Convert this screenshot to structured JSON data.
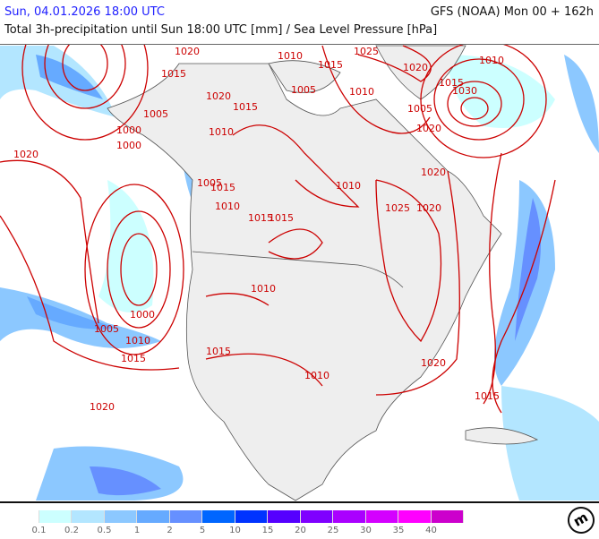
{
  "header": {
    "date": "Sun, 04.01.2026 18:00 UTC",
    "model": "GFS (NOAA) Mon 00 + 162h",
    "title": "Total 3h-precipitation until Sun 18:00 UTC [mm] / Sea Level Pressure [hPa]"
  },
  "colors": {
    "isobar": "#cc0000",
    "land": "#eeeeee",
    "border": "#555555",
    "date_text": "#2020ff"
  },
  "isobar_labels": [
    "1020",
    "1015",
    "1020",
    "1010",
    "1015",
    "1025",
    "1020",
    "1010",
    "1005",
    "1010",
    "1015",
    "1030",
    "1005",
    "1000",
    "1015",
    "1020",
    "1005",
    "1020",
    "1000",
    "1010",
    "1015",
    "1010",
    "1015",
    "1020",
    "1010",
    "1005",
    "1015",
    "1020",
    "1025",
    "1000",
    "1005",
    "1010",
    "1015",
    "1010",
    "1015",
    "1010",
    "1020",
    "1015",
    "1020"
  ],
  "legend": {
    "colors": [
      "#ffffff",
      "#ccffff",
      "#b3e6ff",
      "#8cc8ff",
      "#66aaff",
      "#6690ff",
      "#0066ff",
      "#0033ff",
      "#5500ff",
      "#7f00ff",
      "#aa00ff",
      "#d400ff",
      "#ff00ff",
      "#cc00cc"
    ],
    "labels": [
      "0.1",
      "0.2",
      "0.5",
      "1",
      "2",
      "5",
      "10",
      "15",
      "20",
      "25",
      "30",
      "35",
      "40"
    ]
  },
  "logo_text": "m"
}
